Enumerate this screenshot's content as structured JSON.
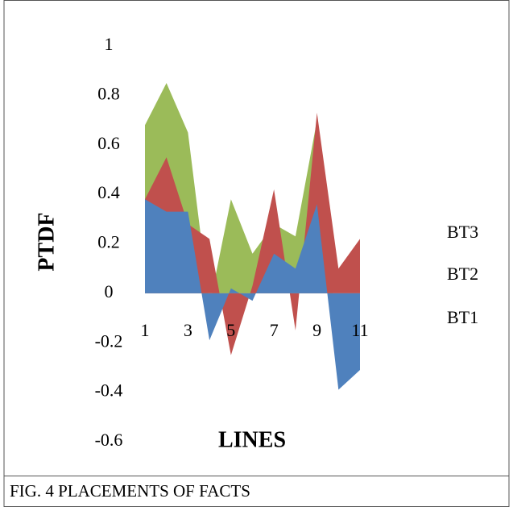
{
  "chart_data": {
    "type": "area",
    "caption": "FIG. 4  PLACEMENTS OF FACTS",
    "x_label": "LINES",
    "y_label": "PTDF",
    "categories": [
      "1",
      null,
      "3",
      null,
      "5",
      null,
      "7",
      null,
      "9",
      null,
      "11"
    ],
    "series": [
      {
        "name": "BT1",
        "color": "#4f81bd",
        "values": [
          0.38,
          0.33,
          0.33,
          -0.19,
          0.02,
          -0.03,
          0.16,
          0.1,
          0.36,
          -0.39,
          -0.31
        ]
      },
      {
        "name": "BT2",
        "color": "#c0504d",
        "values": [
          0.38,
          0.55,
          0.28,
          0.22,
          -0.25,
          0.03,
          0.42,
          -0.15,
          0.73,
          0.1,
          0.22
        ]
      },
      {
        "name": "BT3",
        "color": "#9bbb59",
        "values": [
          0.68,
          0.85,
          0.65,
          -0.05,
          0.38,
          0.16,
          0.28,
          0.23,
          0.7,
          -0.25,
          -0.28
        ]
      }
    ],
    "ylim": [
      -0.6,
      1
    ],
    "yticks": [
      -0.6,
      -0.4,
      -0.2,
      0,
      0.2,
      0.4,
      0.6,
      0.8,
      1
    ]
  }
}
